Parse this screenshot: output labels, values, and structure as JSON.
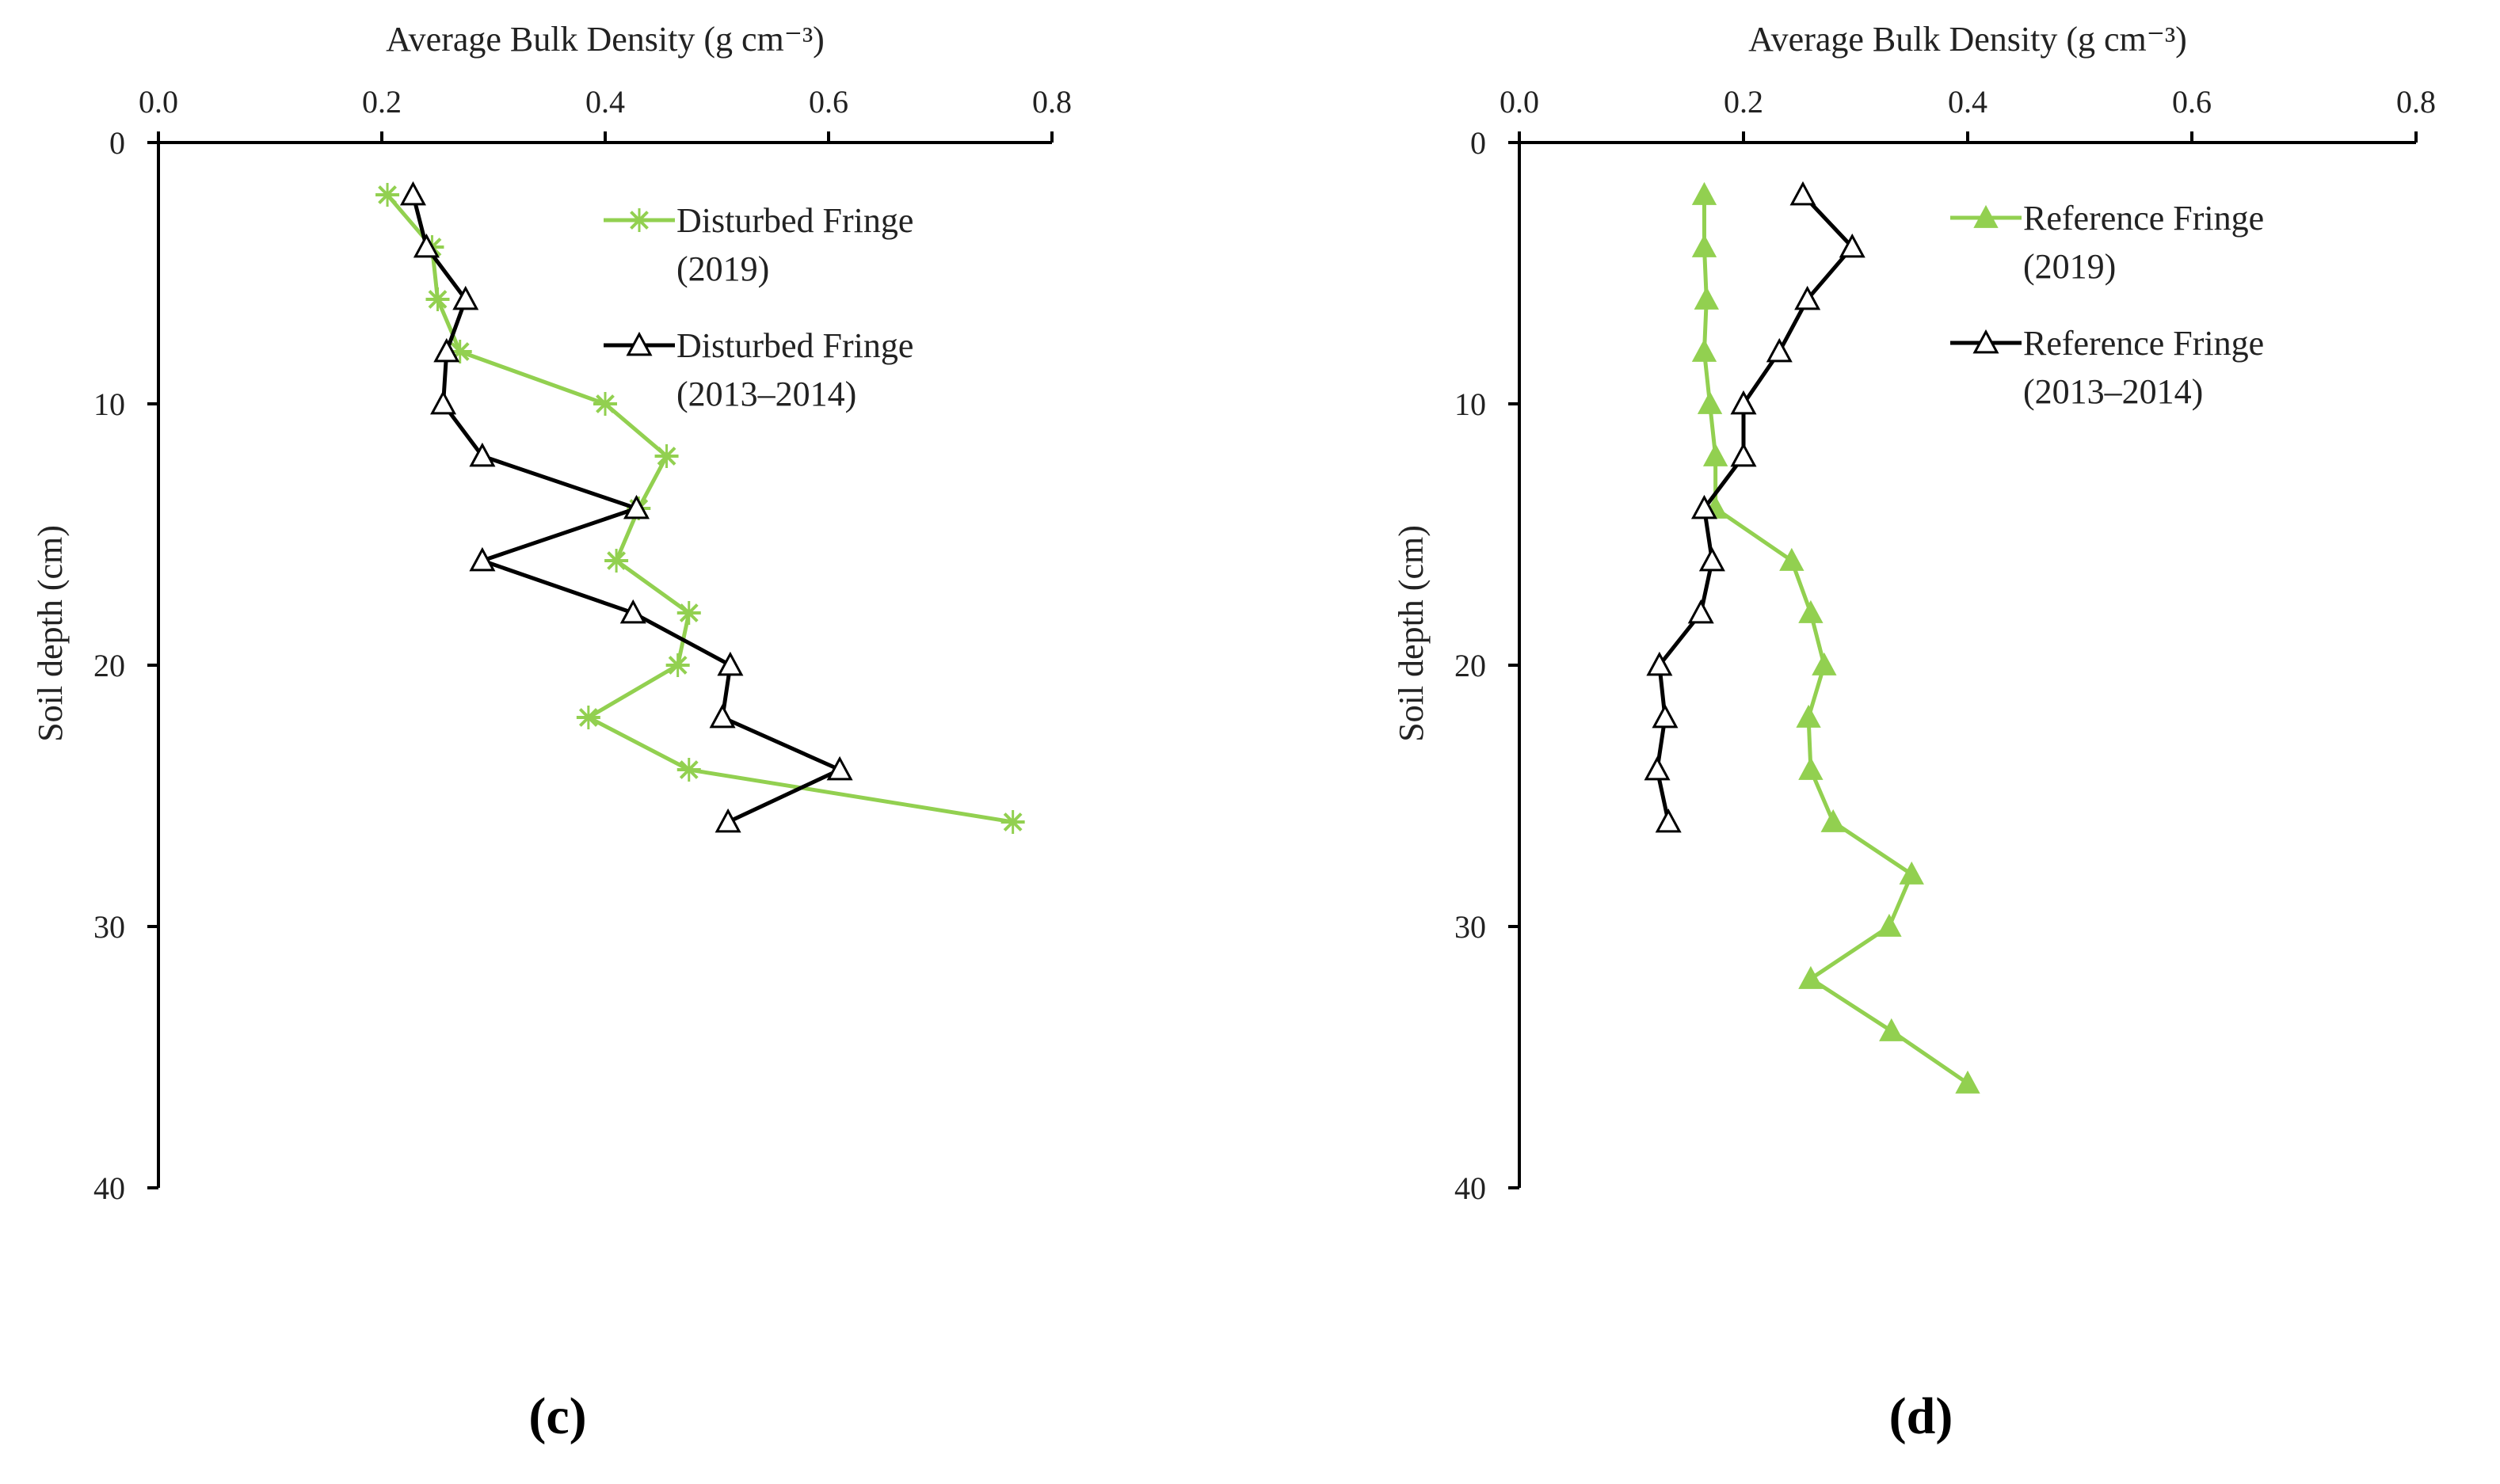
{
  "colors": {
    "green": "#92D050",
    "black": "#000000"
  },
  "chart_data": [
    {
      "type": "line",
      "panel_label": "(c)",
      "title": "",
      "xlabel": "Average Bulk Density (g cm⁻³)",
      "ylabel": "Soil depth (cm)",
      "x_position": "top",
      "y_inverted": true,
      "xlim": [
        0.0,
        0.8
      ],
      "ylim": [
        0,
        40
      ],
      "xticks": [
        "0.0",
        "0.2",
        "0.4",
        "0.6",
        "0.8"
      ],
      "yticks": [
        "0",
        "10",
        "20",
        "30",
        "40"
      ],
      "legend_position": "top-right",
      "series": [
        {
          "name_line1": "Disturbed Fringe",
          "name_line2": "(2019)",
          "marker": "asterisk",
          "color": "#92D050",
          "points": [
            {
              "x": 0.205,
              "y": 2
            },
            {
              "x": 0.245,
              "y": 4
            },
            {
              "x": 0.25,
              "y": 6
            },
            {
              "x": 0.27,
              "y": 8
            },
            {
              "x": 0.4,
              "y": 10
            },
            {
              "x": 0.455,
              "y": 12
            },
            {
              "x": 0.43,
              "y": 14
            },
            {
              "x": 0.41,
              "y": 16
            },
            {
              "x": 0.475,
              "y": 18
            },
            {
              "x": 0.465,
              "y": 20
            },
            {
              "x": 0.385,
              "y": 22
            },
            {
              "x": 0.475,
              "y": 24
            },
            {
              "x": 0.765,
              "y": 26
            }
          ]
        },
        {
          "name_line1": "Disturbed Fringe",
          "name_line2": "(2013–2014)",
          "marker": "triangle-open",
          "color": "#000000",
          "points": [
            {
              "x": 0.228,
              "y": 2
            },
            {
              "x": 0.24,
              "y": 4
            },
            {
              "x": 0.275,
              "y": 6
            },
            {
              "x": 0.258,
              "y": 8
            },
            {
              "x": 0.255,
              "y": 10
            },
            {
              "x": 0.29,
              "y": 12
            },
            {
              "x": 0.428,
              "y": 14
            },
            {
              "x": 0.29,
              "y": 16
            },
            {
              "x": 0.425,
              "y": 18
            },
            {
              "x": 0.512,
              "y": 20
            },
            {
              "x": 0.505,
              "y": 22
            },
            {
              "x": 0.61,
              "y": 24
            },
            {
              "x": 0.51,
              "y": 26
            }
          ]
        }
      ]
    },
    {
      "type": "line",
      "panel_label": "(d)",
      "title": "",
      "xlabel": "Average Bulk Density (g cm⁻³)",
      "ylabel": "Soil depth (cm)",
      "x_position": "top",
      "y_inverted": true,
      "xlim": [
        0.0,
        0.8
      ],
      "ylim": [
        0,
        40
      ],
      "xticks": [
        "0.0",
        "0.2",
        "0.4",
        "0.6",
        "0.8"
      ],
      "yticks": [
        "0",
        "10",
        "20",
        "30",
        "40"
      ],
      "legend_position": "top-right",
      "series": [
        {
          "name_line1": "Reference Fringe",
          "name_line2": "(2019)",
          "marker": "triangle-filled",
          "color": "#92D050",
          "points": [
            {
              "x": 0.165,
              "y": 2
            },
            {
              "x": 0.165,
              "y": 4
            },
            {
              "x": 0.167,
              "y": 6
            },
            {
              "x": 0.165,
              "y": 8
            },
            {
              "x": 0.17,
              "y": 10
            },
            {
              "x": 0.175,
              "y": 12
            },
            {
              "x": 0.175,
              "y": 14
            },
            {
              "x": 0.243,
              "y": 16
            },
            {
              "x": 0.26,
              "y": 18
            },
            {
              "x": 0.272,
              "y": 20
            },
            {
              "x": 0.258,
              "y": 22
            },
            {
              "x": 0.26,
              "y": 24
            },
            {
              "x": 0.28,
              "y": 26
            },
            {
              "x": 0.35,
              "y": 28
            },
            {
              "x": 0.33,
              "y": 30
            },
            {
              "x": 0.26,
              "y": 32
            },
            {
              "x": 0.332,
              "y": 34
            },
            {
              "x": 0.4,
              "y": 36
            }
          ]
        },
        {
          "name_line1": "Reference Fringe",
          "name_line2": "(2013–2014)",
          "marker": "triangle-open",
          "color": "#000000",
          "points": [
            {
              "x": 0.253,
              "y": 2
            },
            {
              "x": 0.297,
              "y": 4
            },
            {
              "x": 0.257,
              "y": 6
            },
            {
              "x": 0.232,
              "y": 8
            },
            {
              "x": 0.2,
              "y": 10
            },
            {
              "x": 0.2,
              "y": 12
            },
            {
              "x": 0.165,
              "y": 14
            },
            {
              "x": 0.172,
              "y": 16
            },
            {
              "x": 0.162,
              "y": 18
            },
            {
              "x": 0.125,
              "y": 20
            },
            {
              "x": 0.13,
              "y": 22
            },
            {
              "x": 0.123,
              "y": 24
            },
            {
              "x": 0.133,
              "y": 26
            }
          ]
        }
      ]
    }
  ]
}
